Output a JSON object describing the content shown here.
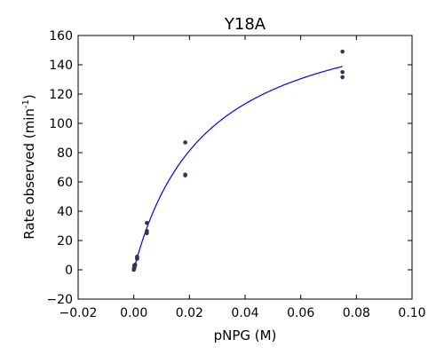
{
  "chart_data": {
    "type": "scatter",
    "title": "Y18A",
    "xlabel": "pNPG (M)",
    "ylabel_main": "Rate observed (min",
    "ylabel_sup": "-1",
    "ylabel_close": ")",
    "xlim": [
      -0.02,
      0.1
    ],
    "ylim": [
      -20,
      160
    ],
    "xticks": [
      -0.02,
      0.0,
      0.02,
      0.04,
      0.06,
      0.08,
      0.1
    ],
    "xtick_labels": [
      "−0.02",
      "0.00",
      "0.02",
      "0.04",
      "0.06",
      "0.08",
      "0.10"
    ],
    "yticks": [
      -20,
      0,
      20,
      40,
      60,
      80,
      100,
      120,
      140,
      160
    ],
    "ytick_labels": [
      "−20",
      "0",
      "20",
      "40",
      "60",
      "80",
      "100",
      "120",
      "140",
      "160"
    ],
    "grid": false,
    "legend": "none",
    "series": [
      {
        "kind": "scatter",
        "color": "#333355",
        "points": [
          [
            0.0,
            0.0
          ],
          [
            5e-05,
            0.5
          ],
          [
            0.0001,
            1.0
          ],
          [
            0.0002,
            1.5
          ],
          [
            0.0002,
            3.0
          ],
          [
            0.0003,
            2.5
          ],
          [
            0.0005,
            3.5
          ],
          [
            0.0012,
            7.5
          ],
          [
            0.0012,
            9.0
          ],
          [
            0.0012,
            8.0
          ],
          [
            0.0047,
            25.0
          ],
          [
            0.0047,
            26.5
          ],
          [
            0.0047,
            32.0
          ],
          [
            0.0185,
            87.0
          ],
          [
            0.0185,
            65.0
          ],
          [
            0.0185,
            64.5
          ],
          [
            0.075,
            149.0
          ],
          [
            0.075,
            135.0
          ],
          [
            0.075,
            131.5
          ]
        ]
      },
      {
        "kind": "fit_line",
        "color": "#0000ff",
        "model": "michaelis-menten",
        "vmax": 187.0,
        "km": 0.026,
        "x_range": [
          0.0,
          0.075
        ]
      }
    ]
  }
}
